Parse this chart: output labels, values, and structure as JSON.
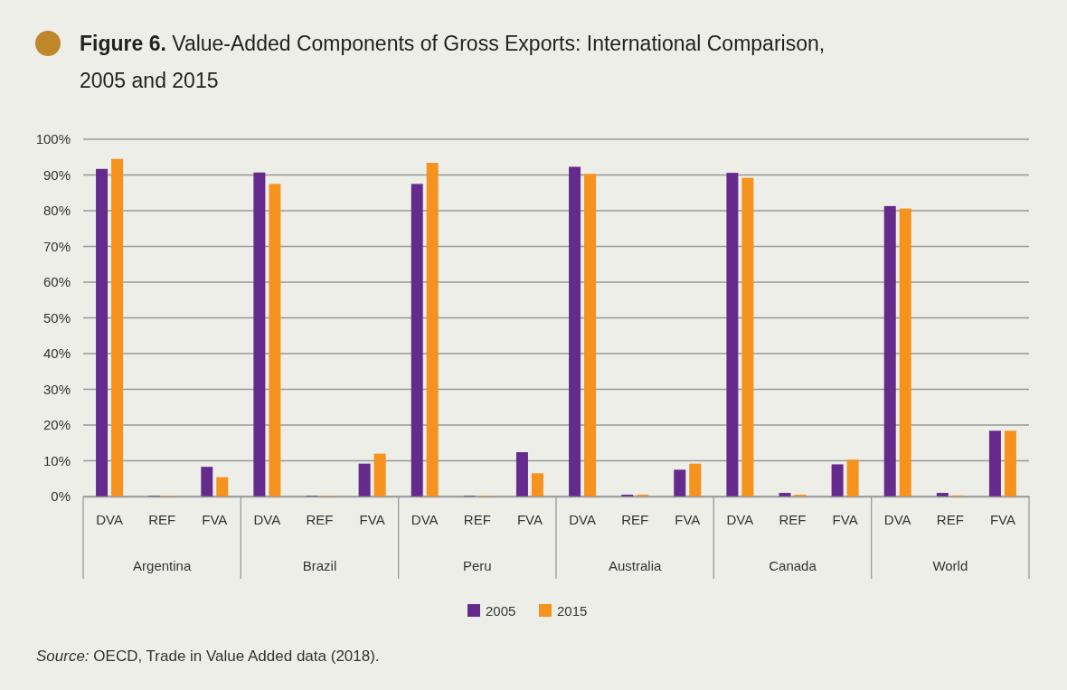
{
  "chart_data": {
    "type": "bar",
    "title": "Figure 6. Value-Added Components of Gross Exports: International Comparison, 2005 and 2015",
    "categories": [
      "DVA",
      "REF",
      "FVA",
      "DVA",
      "REF",
      "FVA",
      "DVA",
      "REF",
      "FVA",
      "DVA",
      "REF",
      "FVA",
      "DVA",
      "REF",
      "FVA",
      "DVA",
      "REF",
      "FVA"
    ],
    "series": [
      {
        "name": "2005",
        "color": "#652b8c",
        "values": [
          91.7,
          0.2,
          8.3,
          90.7,
          0.2,
          9.2,
          87.5,
          0.2,
          12.4,
          92.3,
          0.5,
          7.5,
          90.6,
          1.0,
          9.0,
          81.3,
          1.0,
          18.4
        ]
      },
      {
        "name": "2015",
        "color": "#f6921e",
        "values": [
          94.5,
          0.2,
          5.4,
          87.5,
          0.2,
          12.0,
          93.4,
          0.2,
          6.5,
          90.3,
          0.5,
          9.2,
          89.2,
          0.5,
          10.3,
          80.6,
          0.3,
          18.4
        ]
      }
    ],
    "ylim": [
      0,
      100
    ],
    "yticks": [
      {
        "value": 0,
        "label": "0%"
      },
      {
        "value": 10,
        "label": "10%"
      },
      {
        "value": 20,
        "label": "20%"
      },
      {
        "value": 30,
        "label": "30%"
      },
      {
        "value": 40,
        "label": "40%"
      },
      {
        "value": 50,
        "label": "50%"
      },
      {
        "value": 60,
        "label": "60%"
      },
      {
        "value": 70,
        "label": "70%"
      },
      {
        "value": 80,
        "label": "80%"
      },
      {
        "value": 90,
        "label": "90%"
      },
      {
        "value": 100,
        "label": "100%"
      }
    ],
    "grid": "y",
    "legend": "bottom",
    "annotations": [
      "Argentina",
      "Brazil",
      "Peru",
      "Australia",
      "Canada",
      "World",
      "Source: OECD, Trade in Value Added data (2018)."
    ]
  }
}
